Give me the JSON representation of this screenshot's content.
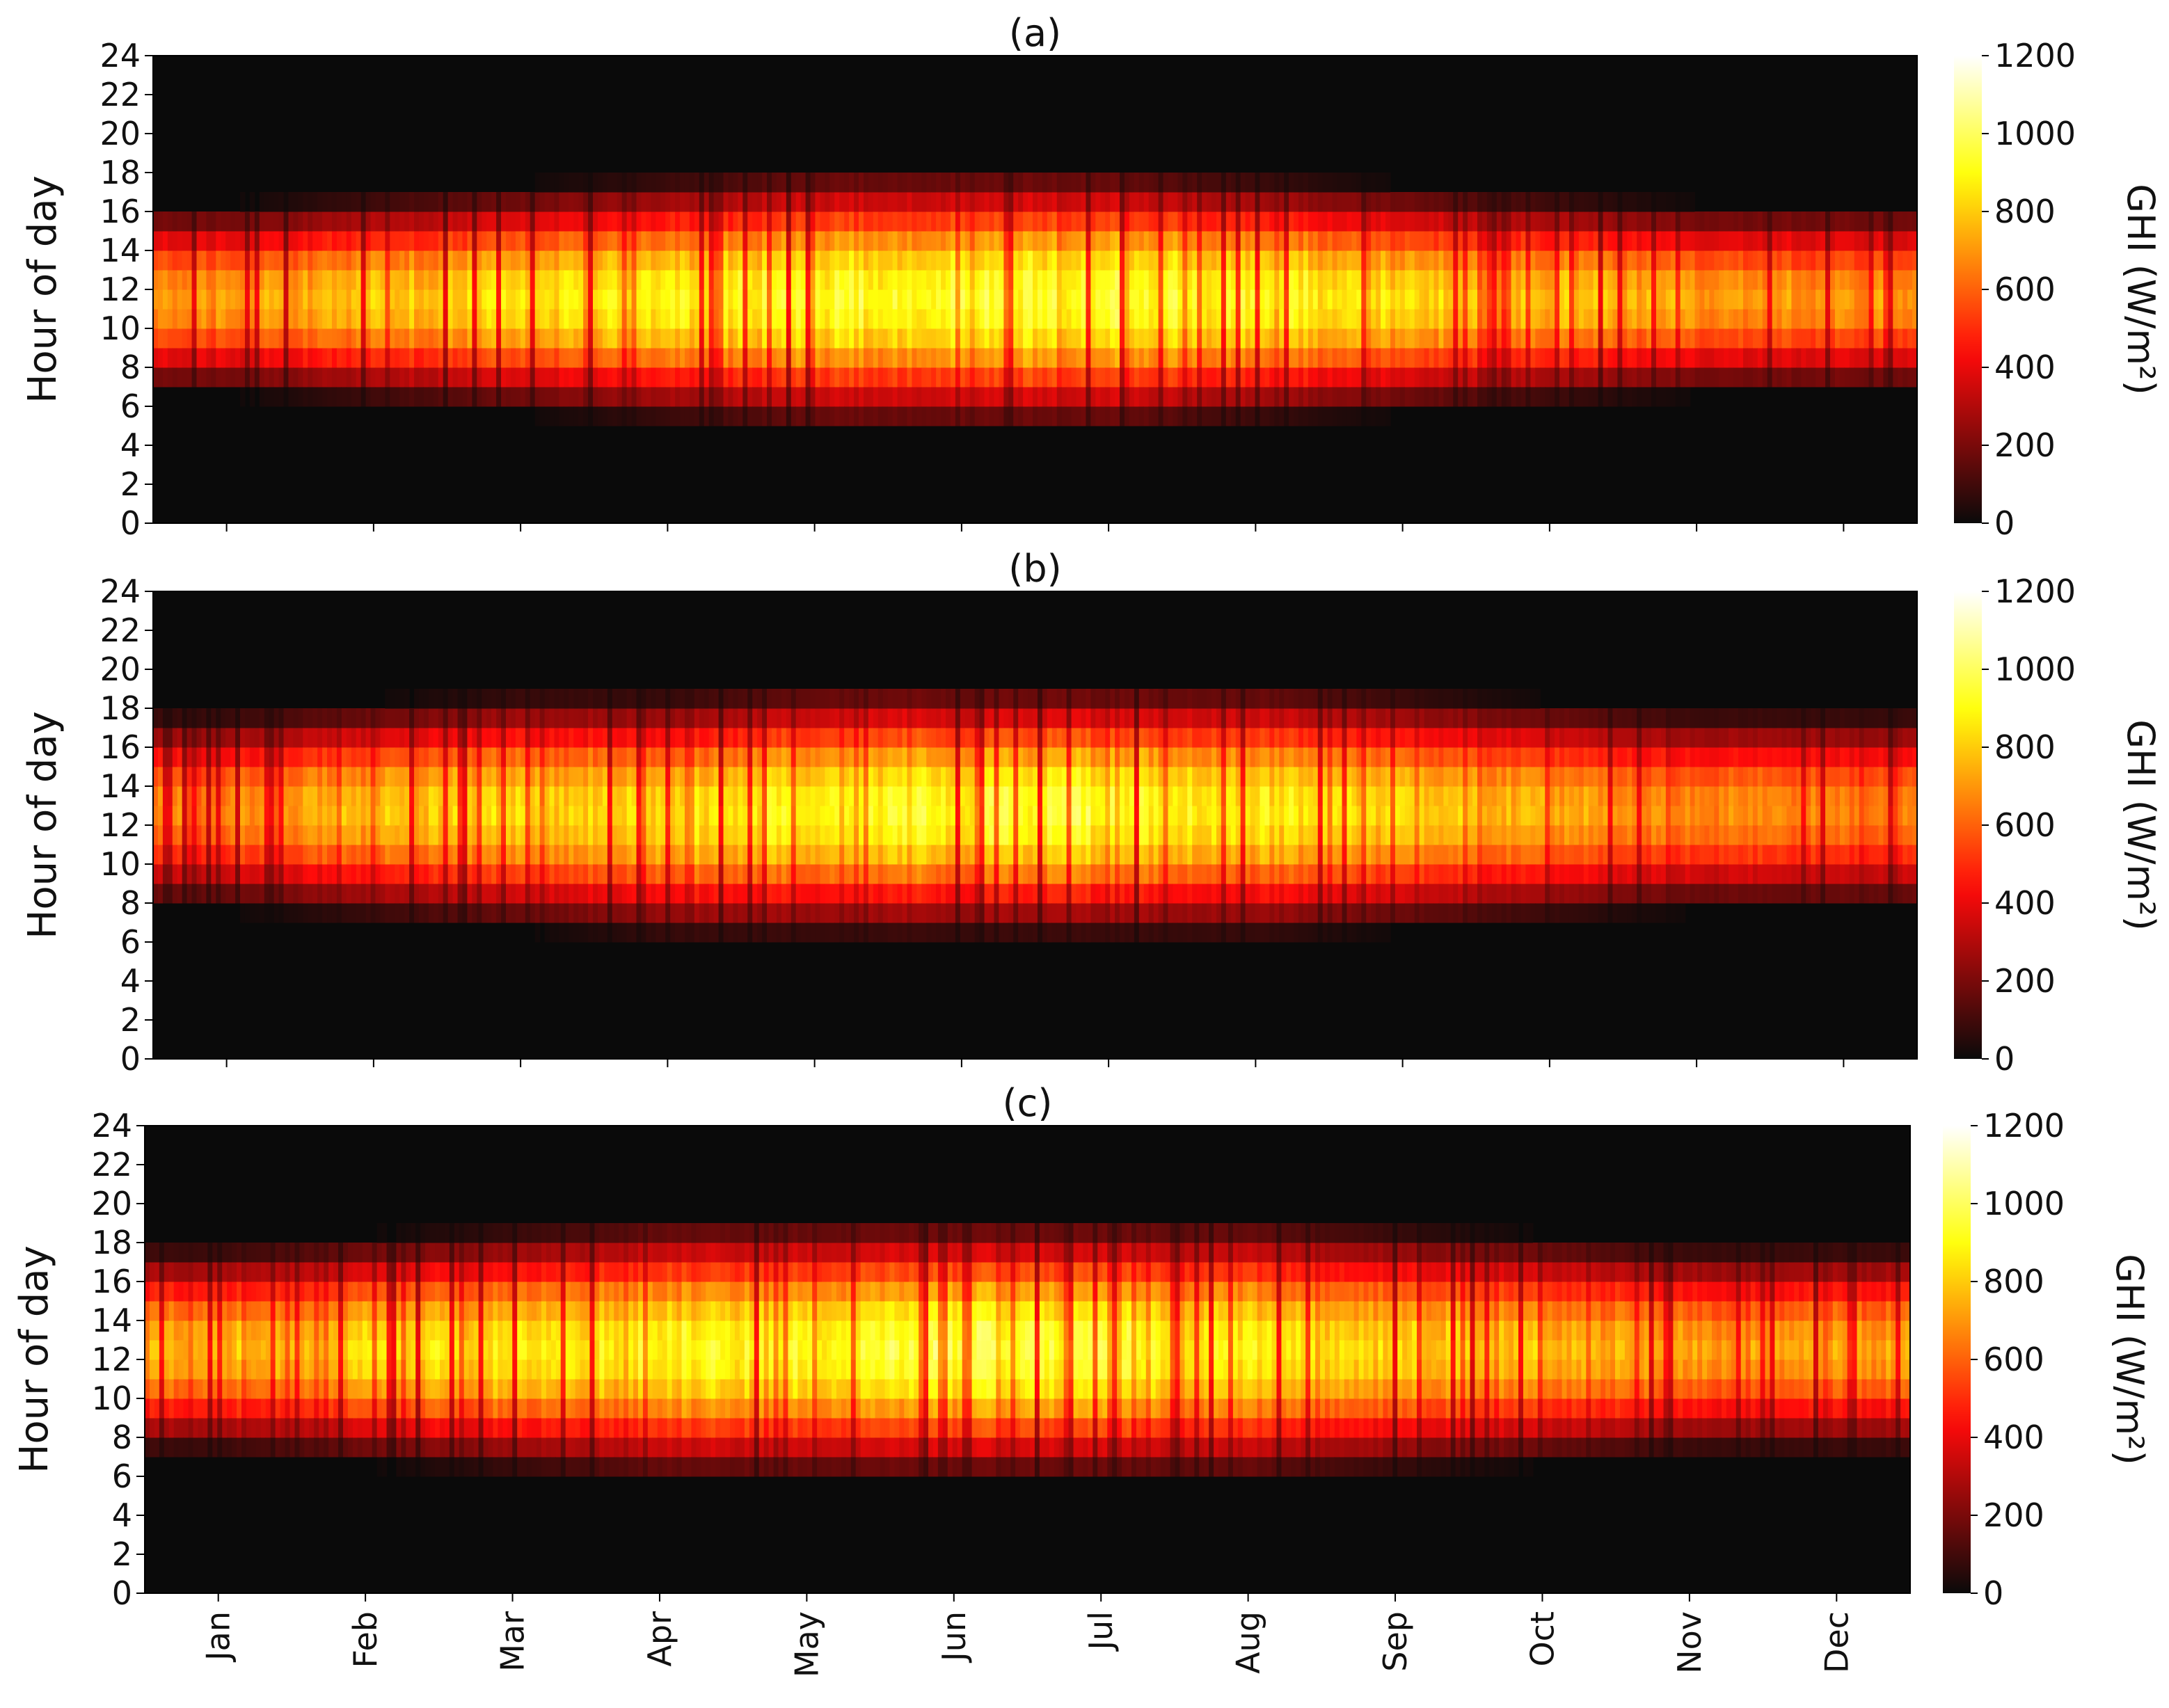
{
  "chart_data": [
    {
      "type": "heatmap",
      "title": "(a)",
      "xlabel": "",
      "ylabel": "Hour of day",
      "colorbar_label": "GHI (W/m²)",
      "colormap": "hot",
      "x_categories": [
        "Jan",
        "Feb",
        "Mar",
        "Apr",
        "May",
        "Jun",
        "Jul",
        "Aug",
        "Sep",
        "Oct",
        "Nov",
        "Dec"
      ],
      "x_ticks_visible": false,
      "yticks": [
        0,
        2,
        4,
        6,
        8,
        10,
        12,
        14,
        16,
        18,
        20,
        22,
        24
      ],
      "ylim": [
        0,
        24
      ],
      "clim": [
        0,
        1200
      ],
      "colorbar_ticks": [
        0,
        200,
        400,
        600,
        800,
        1000,
        1200
      ],
      "monthly_daylight_hours": [
        [
          7,
          16
        ],
        [
          6.5,
          16.5
        ],
        [
          6,
          17
        ],
        [
          5.5,
          17.5
        ],
        [
          5,
          18
        ],
        [
          5,
          18
        ],
        [
          5,
          18
        ],
        [
          5.5,
          17.5
        ],
        [
          6,
          17
        ],
        [
          6.5,
          16.5
        ],
        [
          7,
          16
        ],
        [
          7,
          16
        ]
      ],
      "monthly_peak_GHI": [
        800,
        880,
        940,
        980,
        1020,
        1060,
        1060,
        1020,
        940,
        880,
        820,
        780
      ]
    },
    {
      "type": "heatmap",
      "title": "(b)",
      "xlabel": "",
      "ylabel": "Hour of day",
      "colorbar_label": "GHI (W/m²)",
      "colormap": "hot",
      "x_categories": [
        "Jan",
        "Feb",
        "Mar",
        "Apr",
        "May",
        "Jun",
        "Jul",
        "Aug",
        "Sep",
        "Oct",
        "Nov",
        "Dec"
      ],
      "x_ticks_visible": false,
      "yticks": [
        0,
        2,
        4,
        6,
        8,
        10,
        12,
        14,
        16,
        18,
        20,
        22,
        24
      ],
      "ylim": [
        0,
        24
      ],
      "clim": [
        0,
        1200
      ],
      "colorbar_ticks": [
        0,
        200,
        400,
        600,
        800,
        1000,
        1200
      ],
      "monthly_daylight_hours": [
        [
          8,
          17.5
        ],
        [
          7.5,
          18
        ],
        [
          7,
          18.5
        ],
        [
          6.5,
          18.5
        ],
        [
          6.5,
          19
        ],
        [
          6.5,
          19
        ],
        [
          6.5,
          19
        ],
        [
          6.5,
          19
        ],
        [
          7,
          18.5
        ],
        [
          7.5,
          18
        ],
        [
          8,
          17.5
        ],
        [
          8,
          17.5
        ]
      ],
      "monthly_peak_GHI": [
        760,
        860,
        920,
        960,
        1000,
        1040,
        1040,
        980,
        920,
        820,
        760,
        740
      ]
    },
    {
      "type": "heatmap",
      "title": "(c)",
      "xlabel": "",
      "ylabel": "Hour of day",
      "colorbar_label": "GHI (W/m²)",
      "colormap": "hot",
      "x_categories": [
        "Jan",
        "Feb",
        "Mar",
        "Apr",
        "May",
        "Jun",
        "Jul",
        "Aug",
        "Sep",
        "Oct",
        "Nov",
        "Dec"
      ],
      "x_ticks_visible": true,
      "yticks": [
        0,
        2,
        4,
        6,
        8,
        10,
        12,
        14,
        16,
        18,
        20,
        22,
        24
      ],
      "ylim": [
        0,
        24
      ],
      "clim": [
        0,
        1200
      ],
      "colorbar_ticks": [
        0,
        200,
        400,
        600,
        800,
        1000,
        1200
      ],
      "monthly_daylight_hours": [
        [
          7.5,
          17.5
        ],
        [
          7,
          18
        ],
        [
          6.5,
          18.5
        ],
        [
          6,
          19
        ],
        [
          6,
          19
        ],
        [
          6,
          19
        ],
        [
          6,
          19
        ],
        [
          6,
          19
        ],
        [
          6.5,
          18.5
        ],
        [
          7,
          18
        ],
        [
          7.5,
          17.5
        ],
        [
          7.5,
          17.5
        ]
      ],
      "monthly_peak_GHI": [
        860,
        920,
        960,
        1000,
        1040,
        1080,
        1060,
        980,
        920,
        860,
        820,
        800
      ]
    }
  ]
}
